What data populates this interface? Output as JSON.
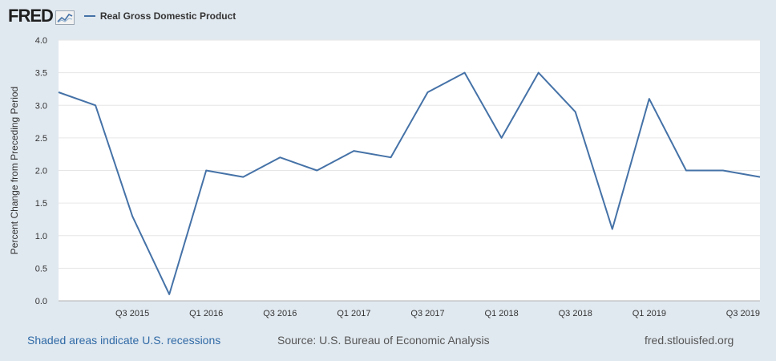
{
  "header": {
    "logo_text": "FRED",
    "legend_label": "Real Gross Domestic Product",
    "series_color": "#4572a7"
  },
  "chart_data": {
    "type": "line",
    "title": "",
    "xlabel": "",
    "ylabel": "Percent Change from Preceding Period",
    "ylim": [
      0,
      4
    ],
    "yticks": [
      "0.0",
      "0.5",
      "1.0",
      "1.5",
      "2.0",
      "2.5",
      "3.0",
      "3.5",
      "4.0"
    ],
    "grid": true,
    "x": [
      "Q1 2015",
      "Q2 2015",
      "Q3 2015",
      "Q4 2015",
      "Q1 2016",
      "Q2 2016",
      "Q3 2016",
      "Q4 2016",
      "Q1 2017",
      "Q2 2017",
      "Q3 2017",
      "Q4 2017",
      "Q1 2018",
      "Q2 2018",
      "Q3 2018",
      "Q4 2018",
      "Q1 2019",
      "Q2 2019",
      "Q3 2019",
      "Q4 2019"
    ],
    "xtick_labels": [
      "Q3 2015",
      "Q1 2016",
      "Q3 2016",
      "Q1 2017",
      "Q3 2017",
      "Q1 2018",
      "Q3 2018",
      "Q1 2019",
      "Q3 2019"
    ],
    "series": [
      {
        "name": "Real Gross Domestic Product",
        "values": [
          3.2,
          3.0,
          1.3,
          0.1,
          2.0,
          1.9,
          2.2,
          2.0,
          2.3,
          2.2,
          3.2,
          3.5,
          2.5,
          3.5,
          2.9,
          1.1,
          3.1,
          2.0,
          2.0,
          1.9
        ]
      }
    ]
  },
  "footer": {
    "recessions_note": "Shaded areas indicate U.S. recessions",
    "source": "Source: U.S. Bureau of Economic Analysis",
    "site": "fred.stlouisfed.org"
  }
}
